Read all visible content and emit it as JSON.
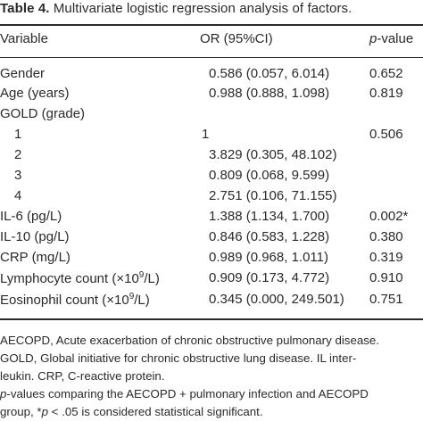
{
  "caption": {
    "label": "Table 4.",
    "title": "Multivariate logistic regression analysis of factors."
  },
  "headers": {
    "variable": "Variable",
    "or": "OR (95%CI)",
    "p_prefix": "p",
    "p_suffix": "-value"
  },
  "rows": [
    {
      "variable": "Gender",
      "or": "0.586 (0.057, 6.014)",
      "p": "0.652"
    },
    {
      "variable": "Age (years)",
      "or": "0.988 (0.888, 1.098)",
      "p": "0.819"
    },
    {
      "variable": "GOLD (grade)",
      "or": "",
      "p": ""
    },
    {
      "variable": "1",
      "or": "1",
      "p": "0.506"
    },
    {
      "variable": "2",
      "or": "3.829 (0.305, 48.102)",
      "p": ""
    },
    {
      "variable": "3",
      "or": "0.809 (0.068, 9.599)",
      "p": ""
    },
    {
      "variable": "4",
      "or": "2.751 (0.106, 71.155)",
      "p": ""
    },
    {
      "variable": "IL-6 (pg/L)",
      "or": "1.388 (1.134, 1.700)",
      "p": "0.002*"
    },
    {
      "variable": "IL-10 (pg/L)",
      "or": "0.846 (0.583, 1.228)",
      "p": "0.380"
    },
    {
      "variable": "CRP (mg/L)",
      "or": "0.989 (0.968, 1.011)",
      "p": "0.319"
    },
    {
      "variable_pre": "Lymphocyte count (×10",
      "variable_sup": "9",
      "variable_post": "/L)",
      "or": "0.909 (0.173, 4.772)",
      "p": "0.910"
    },
    {
      "variable_pre": "Eosinophil count (×10",
      "variable_sup": "9",
      "variable_post": "/L)",
      "or": "0.345 (0.000, 249.501)",
      "p": "0.751"
    }
  ],
  "notes": {
    "line1": "AECOPD, Acute exacerbation of chronic obstructive pulmonary disease.",
    "line2": "GOLD, Global initiative for chronic obstructive lung disease. IL inter-",
    "line3": "leukin. CRP, C-reactive protein.",
    "line4_italic": "p",
    "line4_rest": "-values comparing the AECOPD + pulmonary infection and AECOPD",
    "line5_pre": "group, *",
    "line5_italic": "p",
    "line5_rest": " < .05 is considered statistical significant."
  }
}
